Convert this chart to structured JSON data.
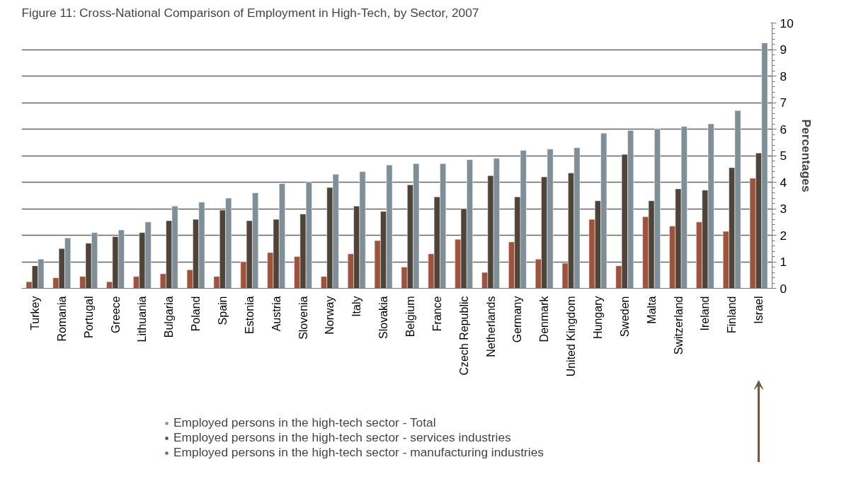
{
  "chart_data": {
    "type": "bar",
    "title": "Figure 11: Cross-National Comparison of Employment in High-Tech, by Sector, 2007",
    "ylabel": "Percentages",
    "categories": [
      "Turkey",
      "Romania",
      "Portugal",
      "Greece",
      "Lithuania",
      "Bulgaria",
      "Poland",
      "Spain",
      "Estonia",
      "Austria",
      "Slovenia",
      "Norway",
      "Italy",
      "Slovakia",
      "Belgium",
      "France",
      "Czech Republic",
      "Netherlands",
      "Germany",
      "Denmark",
      "United Kingdom",
      "Hungary",
      "Sweden",
      "Malta",
      "Switzerland",
      "Ireland",
      "Finland",
      "Israel"
    ],
    "series": [
      {
        "name": "Employed persons in the high-tech sector - manufacturing industries",
        "color": "#a0523a",
        "values": [
          0.25,
          0.4,
          0.45,
          0.25,
          0.45,
          0.55,
          0.7,
          0.45,
          1.0,
          1.35,
          1.2,
          0.45,
          1.3,
          1.8,
          0.8,
          1.3,
          1.85,
          0.6,
          1.75,
          1.1,
          0.95,
          2.6,
          0.85,
          2.7,
          2.35,
          2.5,
          2.15,
          4.15
        ]
      },
      {
        "name": "Employed persons in the high-tech sector - services industries",
        "color": "#4f4438",
        "values": [
          0.85,
          1.5,
          1.7,
          1.95,
          2.1,
          2.55,
          2.6,
          2.95,
          2.55,
          2.6,
          2.8,
          3.8,
          3.1,
          2.9,
          3.9,
          3.45,
          3.0,
          4.25,
          3.45,
          4.2,
          4.35,
          3.3,
          5.05,
          3.3,
          3.75,
          3.7,
          4.55,
          5.1
        ]
      },
      {
        "name": "Employed persons in the high-tech sector - Total",
        "color": "#7f8f97",
        "values": [
          1.1,
          1.9,
          2.1,
          2.2,
          2.5,
          3.1,
          3.25,
          3.4,
          3.6,
          3.95,
          4.0,
          4.3,
          4.4,
          4.65,
          4.7,
          4.7,
          4.85,
          4.9,
          5.2,
          5.25,
          5.3,
          5.85,
          5.95,
          6.0,
          6.1,
          6.2,
          6.7,
          9.25
        ]
      }
    ],
    "ylim": [
      0,
      10
    ],
    "yticks": [
      0,
      1,
      2,
      3,
      4,
      5,
      6,
      7,
      8,
      9,
      10
    ],
    "grid": "y",
    "legend": "bottom"
  }
}
